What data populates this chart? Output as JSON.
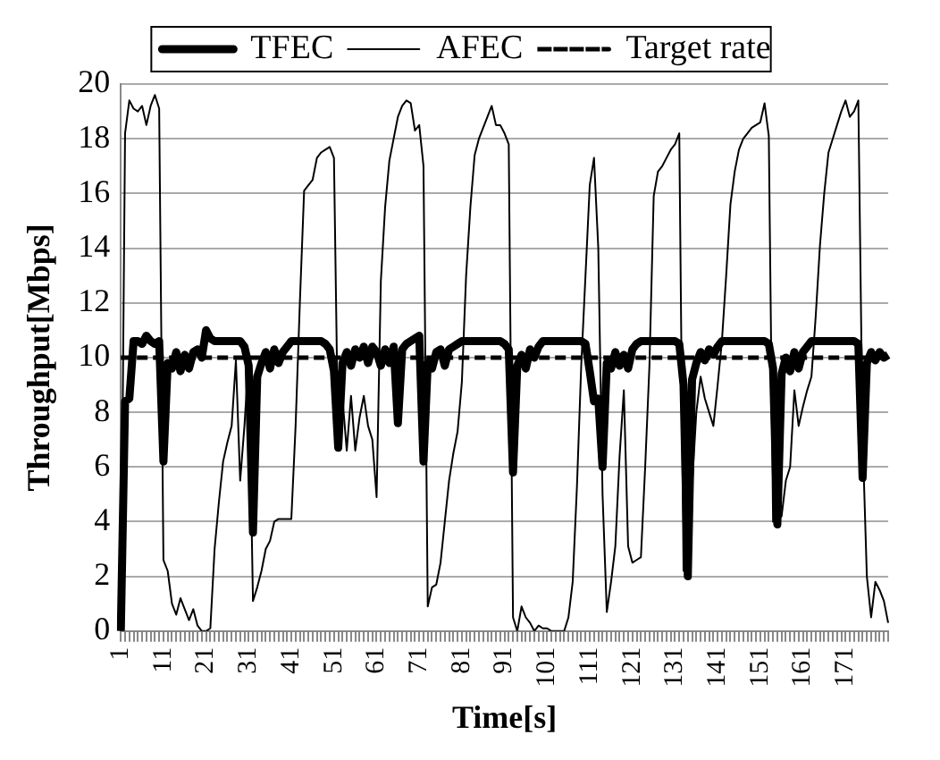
{
  "chart_data": {
    "type": "line",
    "xlabel": "Time[s]",
    "ylabel": "Throughput[Mbps]",
    "categories": [
      "1",
      null,
      null,
      null,
      null,
      null,
      null,
      null,
      null,
      null,
      "11",
      null,
      null,
      null,
      null,
      null,
      null,
      null,
      null,
      null,
      "21",
      null,
      null,
      null,
      null,
      null,
      null,
      null,
      null,
      null,
      "31",
      null,
      null,
      null,
      null,
      null,
      null,
      null,
      null,
      null,
      "41",
      null,
      null,
      null,
      null,
      null,
      null,
      null,
      null,
      null,
      "51",
      null,
      null,
      null,
      null,
      null,
      null,
      null,
      null,
      null,
      "61",
      null,
      null,
      null,
      null,
      null,
      null,
      null,
      null,
      null,
      "71",
      null,
      null,
      null,
      null,
      null,
      null,
      null,
      null,
      null,
      "81",
      null,
      null,
      null,
      null,
      null,
      null,
      null,
      null,
      null,
      "91",
      null,
      null,
      null,
      null,
      null,
      null,
      null,
      null,
      null,
      "101",
      null,
      null,
      null,
      null,
      null,
      null,
      null,
      null,
      null,
      "111",
      null,
      null,
      null,
      null,
      null,
      null,
      null,
      null,
      null,
      "121",
      null,
      null,
      null,
      null,
      null,
      null,
      null,
      null,
      null,
      "131",
      null,
      null,
      null,
      null,
      null,
      null,
      null,
      null,
      null,
      "141",
      null,
      null,
      null,
      null,
      null,
      null,
      null,
      null,
      null,
      "151",
      null,
      null,
      null,
      null,
      null,
      null,
      null,
      null,
      null,
      "161",
      null,
      null,
      null,
      null,
      null,
      null,
      null,
      null,
      null,
      "171",
      null,
      null,
      null,
      null,
      null,
      null,
      null,
      null,
      null,
      null
    ],
    "series": [
      {
        "name": "TFEC",
        "color": "#000000",
        "line_style": "solid",
        "values": [
          0,
          8.4,
          8.5,
          10.6,
          10.6,
          10.5,
          10.8,
          10.6,
          10.5,
          10.6,
          6.2,
          9.8,
          9.6,
          10.2,
          9.5,
          10.1,
          9.6,
          10.2,
          10.3,
          10.0,
          11.0,
          10.7,
          10.6,
          10.6,
          10.6,
          10.6,
          10.6,
          10.6,
          10.6,
          10.4,
          9.7,
          3.6,
          9.3,
          9.8,
          10.2,
          9.6,
          10.3,
          9.8,
          10.2,
          10.4,
          10.6,
          10.6,
          10.6,
          10.6,
          10.6,
          10.6,
          10.6,
          10.6,
          10.5,
          10.3,
          9.5,
          6.7,
          9.8,
          10.2,
          9.7,
          10.3,
          10.0,
          10.4,
          9.8,
          10.4,
          10.2,
          9.7,
          10.3,
          9.8,
          10.4,
          7.6,
          10.3,
          10.5,
          10.6,
          10.7,
          10.8,
          6.2,
          9.8,
          9.6,
          10.2,
          10.3,
          9.7,
          10.3,
          10.4,
          10.5,
          10.6,
          10.6,
          10.6,
          10.6,
          10.6,
          10.6,
          10.6,
          10.6,
          10.6,
          10.6,
          10.5,
          10.3,
          5.8,
          9.7,
          10.1,
          9.6,
          10.3,
          10.0,
          10.4,
          10.6,
          10.6,
          10.6,
          10.6,
          10.6,
          10.6,
          10.6,
          10.6,
          10.6,
          10.6,
          10.5,
          9.5,
          8.4,
          8.5,
          6.0,
          9.8,
          9.6,
          10.2,
          9.7,
          10.1,
          9.6,
          10.3,
          10.5,
          10.6,
          10.6,
          10.6,
          10.6,
          10.6,
          10.6,
          10.6,
          10.6,
          10.6,
          10.5,
          9.0,
          2.0,
          9.2,
          9.8,
          10.2,
          9.9,
          10.3,
          10.1,
          10.4,
          10.6,
          10.6,
          10.6,
          10.6,
          10.6,
          10.6,
          10.6,
          10.6,
          10.6,
          10.6,
          10.6,
          10.5,
          9.6,
          3.9,
          9.4,
          10.0,
          9.5,
          10.2,
          9.6,
          10.2,
          10.4,
          10.6,
          10.6,
          10.6,
          10.6,
          10.6,
          10.6,
          10.6,
          10.6,
          10.6,
          10.6,
          10.6,
          10.5,
          5.6,
          9.8,
          10.2,
          9.9,
          10.2,
          10.0,
          10.1
        ]
      },
      {
        "name": "AFEC",
        "color": "#000000",
        "line_style": "solid",
        "values": [
          0,
          18.2,
          19.4,
          19.1,
          19.0,
          19.2,
          18.5,
          19.2,
          19.6,
          19.1,
          2.6,
          2.2,
          1.0,
          0.6,
          1.2,
          0.8,
          0.4,
          0.8,
          0.2,
          0,
          0,
          0.1,
          3.0,
          4.7,
          6.2,
          6.9,
          7.5,
          9.9,
          5.5,
          7.5,
          10.0,
          1.1,
          1.6,
          2.2,
          3.0,
          3.3,
          4.0,
          4.1,
          4.1,
          4.1,
          4.1,
          7.5,
          12.0,
          16.1,
          16.3,
          16.5,
          17.3,
          17.5,
          17.6,
          17.7,
          17.3,
          6.6,
          8.5,
          6.6,
          8.6,
          6.6,
          7.8,
          8.6,
          7.5,
          7.0,
          4.9,
          12.8,
          15.5,
          17.2,
          18.0,
          18.8,
          19.2,
          19.4,
          19.3,
          18.3,
          18.5,
          17.0,
          0.9,
          1.6,
          1.7,
          2.5,
          4.0,
          5.5,
          6.5,
          7.3,
          9.1,
          13.0,
          15.5,
          17.4,
          18.0,
          18.4,
          18.8,
          19.2,
          18.5,
          18.5,
          18.2,
          17.8,
          0.5,
          0.0,
          0.9,
          0.5,
          0.3,
          0.0,
          0.2,
          0.1,
          0.1,
          0.0,
          0.0,
          0.0,
          0.0,
          0.5,
          1.8,
          5.3,
          9.7,
          13.0,
          16.3,
          17.3,
          14.0,
          5.0,
          0.7,
          1.8,
          3.1,
          6.4,
          8.8,
          3.1,
          2.5,
          2.6,
          2.7,
          6.0,
          9.7,
          15.9,
          16.8,
          17.0,
          17.3,
          17.6,
          17.8,
          18.2,
          2.2,
          3.5,
          5.3,
          8.0,
          9.3,
          8.5,
          8.0,
          7.5,
          9.0,
          10.6,
          13.0,
          15.6,
          16.8,
          17.6,
          18.0,
          18.2,
          18.4,
          18.5,
          18.6,
          19.3,
          18.1,
          4.0,
          4.1,
          4.2,
          5.5,
          6.0,
          8.8,
          7.5,
          8.2,
          8.8,
          9.3,
          11.5,
          14.1,
          16.0,
          17.5,
          18.0,
          18.5,
          19.0,
          19.4,
          18.8,
          19.0,
          19.4,
          7.1,
          2.0,
          0.5,
          1.8,
          1.5,
          1.1,
          0.3
        ]
      },
      {
        "name": "Target rate",
        "color": "#000000",
        "line_style": "dashed",
        "values": [
          10,
          10,
          10,
          10,
          10,
          10,
          10,
          10,
          10,
          10,
          10,
          10,
          10,
          10,
          10,
          10,
          10,
          10,
          10,
          10,
          10,
          10,
          10,
          10,
          10,
          10,
          10,
          10,
          10,
          10,
          10,
          10,
          10,
          10,
          10,
          10,
          10,
          10,
          10,
          10,
          10,
          10,
          10,
          10,
          10,
          10,
          10,
          10,
          10,
          10,
          10,
          10,
          10,
          10,
          10,
          10,
          10,
          10,
          10,
          10,
          10,
          10,
          10,
          10,
          10,
          10,
          10,
          10,
          10,
          10,
          10,
          10,
          10,
          10,
          10,
          10,
          10,
          10,
          10,
          10,
          10,
          10,
          10,
          10,
          10,
          10,
          10,
          10,
          10,
          10,
          10,
          10,
          10,
          10,
          10,
          10,
          10,
          10,
          10,
          10,
          10,
          10,
          10,
          10,
          10,
          10,
          10,
          10,
          10,
          10,
          10,
          10,
          10,
          10,
          10,
          10,
          10,
          10,
          10,
          10,
          10,
          10,
          10,
          10,
          10,
          10,
          10,
          10,
          10,
          10,
          10,
          10,
          10,
          10,
          10,
          10,
          10,
          10,
          10,
          10,
          10,
          10,
          10,
          10,
          10,
          10,
          10,
          10,
          10,
          10,
          10,
          10,
          10,
          10,
          10,
          10,
          10,
          10,
          10,
          10,
          10,
          10,
          10,
          10,
          10,
          10,
          10,
          10,
          10,
          10,
          10,
          10,
          10,
          10,
          10,
          10,
          10,
          10,
          10,
          10,
          10
        ]
      }
    ],
    "ylim": [
      0,
      20
    ],
    "yticks": [
      0,
      2,
      4,
      6,
      8,
      10,
      12,
      14,
      16,
      18,
      20
    ],
    "grid": "y",
    "legend": "top",
    "marker": "none"
  }
}
